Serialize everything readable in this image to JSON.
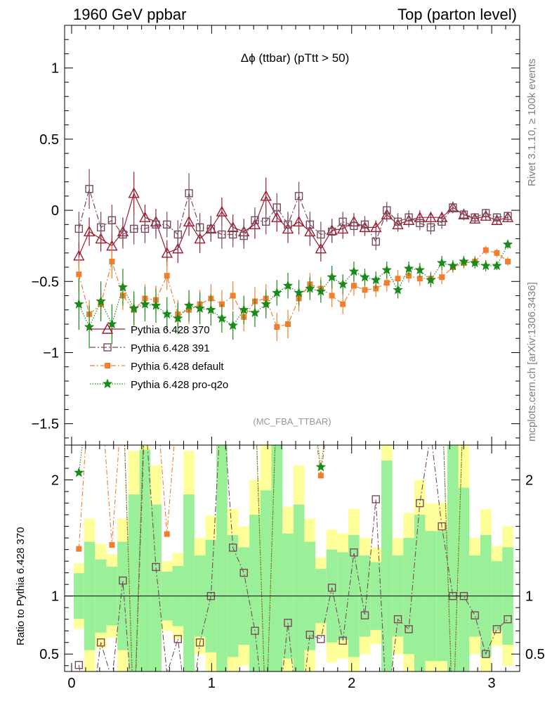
{
  "header": {
    "left": "1960 GeV ppbar",
    "right": "Top (parton level)",
    "side_top": "Rivet 3.1.10, ≥ 100k events",
    "side_bottom": "mcplots.cern.ch [arXiv:1306.3436]"
  },
  "chart_data": {
    "type": "line",
    "title": "Δϕ (ttbar) (pTtt > 50)",
    "watermark": "(MC_FBA_TTBAR)",
    "xlim": [
      -0.05,
      3.2
    ],
    "xticks": [
      0,
      1,
      2,
      3
    ],
    "main": {
      "ylim": [
        -1.65,
        1.3
      ],
      "yticks": [
        -1.5,
        -1,
        -0.5,
        0,
        0.5,
        1
      ],
      "ytick_labels": [
        "−1.5",
        "−1",
        "−0.5",
        "0",
        "0.5",
        "1"
      ]
    },
    "ratio": {
      "ylabel": "Ratio to Pythia 6.428 370",
      "ylim": [
        0.35,
        2.3
      ],
      "yticks": [
        0.5,
        1,
        2
      ],
      "ytick_labels": [
        "0.5",
        "1",
        "2"
      ]
    },
    "x": [
      0.052,
      0.126,
      0.209,
      0.288,
      0.366,
      0.445,
      0.524,
      0.602,
      0.681,
      0.759,
      0.838,
      0.916,
      0.995,
      1.073,
      1.152,
      1.23,
      1.309,
      1.388,
      1.466,
      1.545,
      1.623,
      1.702,
      1.78,
      1.859,
      1.937,
      2.016,
      2.094,
      2.173,
      2.251,
      2.33,
      2.408,
      2.487,
      2.565,
      2.644,
      2.723,
      2.801,
      2.88,
      2.958,
      3.037,
      3.115
    ],
    "series": [
      {
        "name": "Pythia 6.428 370",
        "color": "#9b1b30",
        "marker": "triangle",
        "dash": "",
        "values": [
          -0.32,
          -0.15,
          -0.2,
          -0.25,
          -0.15,
          0.12,
          -0.05,
          -0.08,
          -0.3,
          -0.27,
          -0.08,
          -0.2,
          -0.13,
          -0.01,
          -0.12,
          -0.15,
          -0.1,
          0.1,
          -0.05,
          -0.13,
          -0.08,
          -0.15,
          -0.27,
          -0.14,
          -0.13,
          -0.08,
          -0.12,
          -0.12,
          -0.03,
          -0.1,
          -0.07,
          -0.05,
          -0.05,
          -0.05,
          0.02,
          -0.03,
          -0.06,
          -0.04,
          -0.07,
          -0.05
        ],
        "errors": [
          0.09,
          0.1,
          0.09,
          0.09,
          0.1,
          0.15,
          0.09,
          0.09,
          0.09,
          0.1,
          0.1,
          0.1,
          0.09,
          0.1,
          0.09,
          0.09,
          0.1,
          0.13,
          0.1,
          0.1,
          0.09,
          0.1,
          0.09,
          0.08,
          0.07,
          0.06,
          0.06,
          0.05,
          0.05,
          0.05,
          0.05,
          0.05,
          0.04,
          0.04,
          0.04,
          0.04,
          0.03,
          0.03,
          0.03,
          0.03
        ]
      },
      {
        "name": "Pythia 6.428 391",
        "color": "#7a4a5a",
        "marker": "square",
        "dash": "8,3,2,3",
        "values": [
          -0.13,
          0.15,
          -0.12,
          -0.07,
          -0.17,
          -0.13,
          -0.13,
          -0.1,
          -0.1,
          -0.17,
          0.12,
          -0.12,
          -0.13,
          -0.17,
          -0.17,
          -0.18,
          -0.07,
          -0.08,
          0.02,
          -0.1,
          0.1,
          -0.1,
          -0.17,
          -0.15,
          -0.08,
          -0.11,
          -0.1,
          -0.22,
          0.0,
          -0.08,
          -0.05,
          -0.09,
          -0.12,
          -0.08,
          0.02,
          -0.03,
          -0.05,
          -0.02,
          -0.05,
          -0.04
        ],
        "errors": [
          0.12,
          0.14,
          0.11,
          0.11,
          0.1,
          0.11,
          0.1,
          0.1,
          0.09,
          0.1,
          0.14,
          0.1,
          0.09,
          0.1,
          0.09,
          0.09,
          0.09,
          0.09,
          0.1,
          0.09,
          0.1,
          0.09,
          0.09,
          0.08,
          0.07,
          0.07,
          0.06,
          0.06,
          0.06,
          0.06,
          0.05,
          0.05,
          0.05,
          0.05,
          0.04,
          0.04,
          0.03,
          0.03,
          0.03,
          0.03
        ]
      },
      {
        "name": "Pythia 6.428 default",
        "color": "#f07f2d",
        "marker": "filled-square",
        "dash": "7,3,2,3",
        "values": [
          -0.45,
          -0.73,
          -0.66,
          -0.36,
          -0.6,
          -0.7,
          -0.62,
          -0.63,
          -0.46,
          -0.73,
          -0.7,
          -0.66,
          -0.62,
          -0.66,
          -0.6,
          -0.75,
          -0.64,
          -0.62,
          -0.82,
          -0.8,
          -0.62,
          -0.52,
          -0.55,
          -0.6,
          -0.66,
          -0.53,
          -0.56,
          -0.55,
          -0.51,
          -0.48,
          -0.46,
          -0.48,
          -0.48,
          -0.47,
          -0.4,
          -0.37,
          -0.36,
          -0.28,
          -0.3,
          -0.36
        ],
        "errors": [
          0.12,
          0.1,
          0.1,
          0.12,
          0.1,
          0.1,
          0.1,
          0.1,
          0.1,
          0.1,
          0.1,
          0.1,
          0.1,
          0.1,
          0.1,
          0.1,
          0.1,
          0.1,
          0.1,
          0.1,
          0.09,
          0.08,
          0.08,
          0.08,
          0.07,
          0.07,
          0.06,
          0.06,
          0.06,
          0.06,
          0.05,
          0.05,
          0.05,
          0.05,
          0.04,
          0.04,
          0.04,
          0.03,
          0.03,
          0.03
        ]
      },
      {
        "name": "Pythia 6.428 pro-q2o",
        "color": "#1a8a1a",
        "marker": "star",
        "dash": "1.5,2",
        "values": [
          -0.66,
          -0.82,
          -0.64,
          -0.8,
          -0.54,
          -0.69,
          -0.66,
          -0.67,
          -0.73,
          -0.76,
          -0.67,
          -0.69,
          -0.7,
          -0.76,
          -0.81,
          -0.7,
          -0.72,
          -0.66,
          -0.58,
          -0.53,
          -0.58,
          -0.55,
          -0.57,
          -0.47,
          -0.52,
          -0.43,
          -0.47,
          -0.49,
          -0.42,
          -0.56,
          -0.41,
          -0.42,
          -0.49,
          -0.37,
          -0.39,
          -0.36,
          -0.37,
          -0.39,
          -0.39,
          -0.24
        ],
        "errors": [
          0.18,
          0.15,
          0.14,
          0.14,
          0.13,
          0.12,
          0.12,
          0.12,
          0.12,
          0.11,
          0.11,
          0.11,
          0.11,
          0.1,
          0.1,
          0.1,
          0.1,
          0.1,
          0.09,
          0.09,
          0.09,
          0.08,
          0.08,
          0.08,
          0.07,
          0.07,
          0.06,
          0.06,
          0.06,
          0.06,
          0.05,
          0.05,
          0.05,
          0.05,
          0.04,
          0.04,
          0.04,
          0.04,
          0.03,
          0.03
        ]
      }
    ],
    "legend_placement": "lower-left",
    "band_color_inner": "#99f099",
    "band_color_outer": "#ffff99"
  }
}
